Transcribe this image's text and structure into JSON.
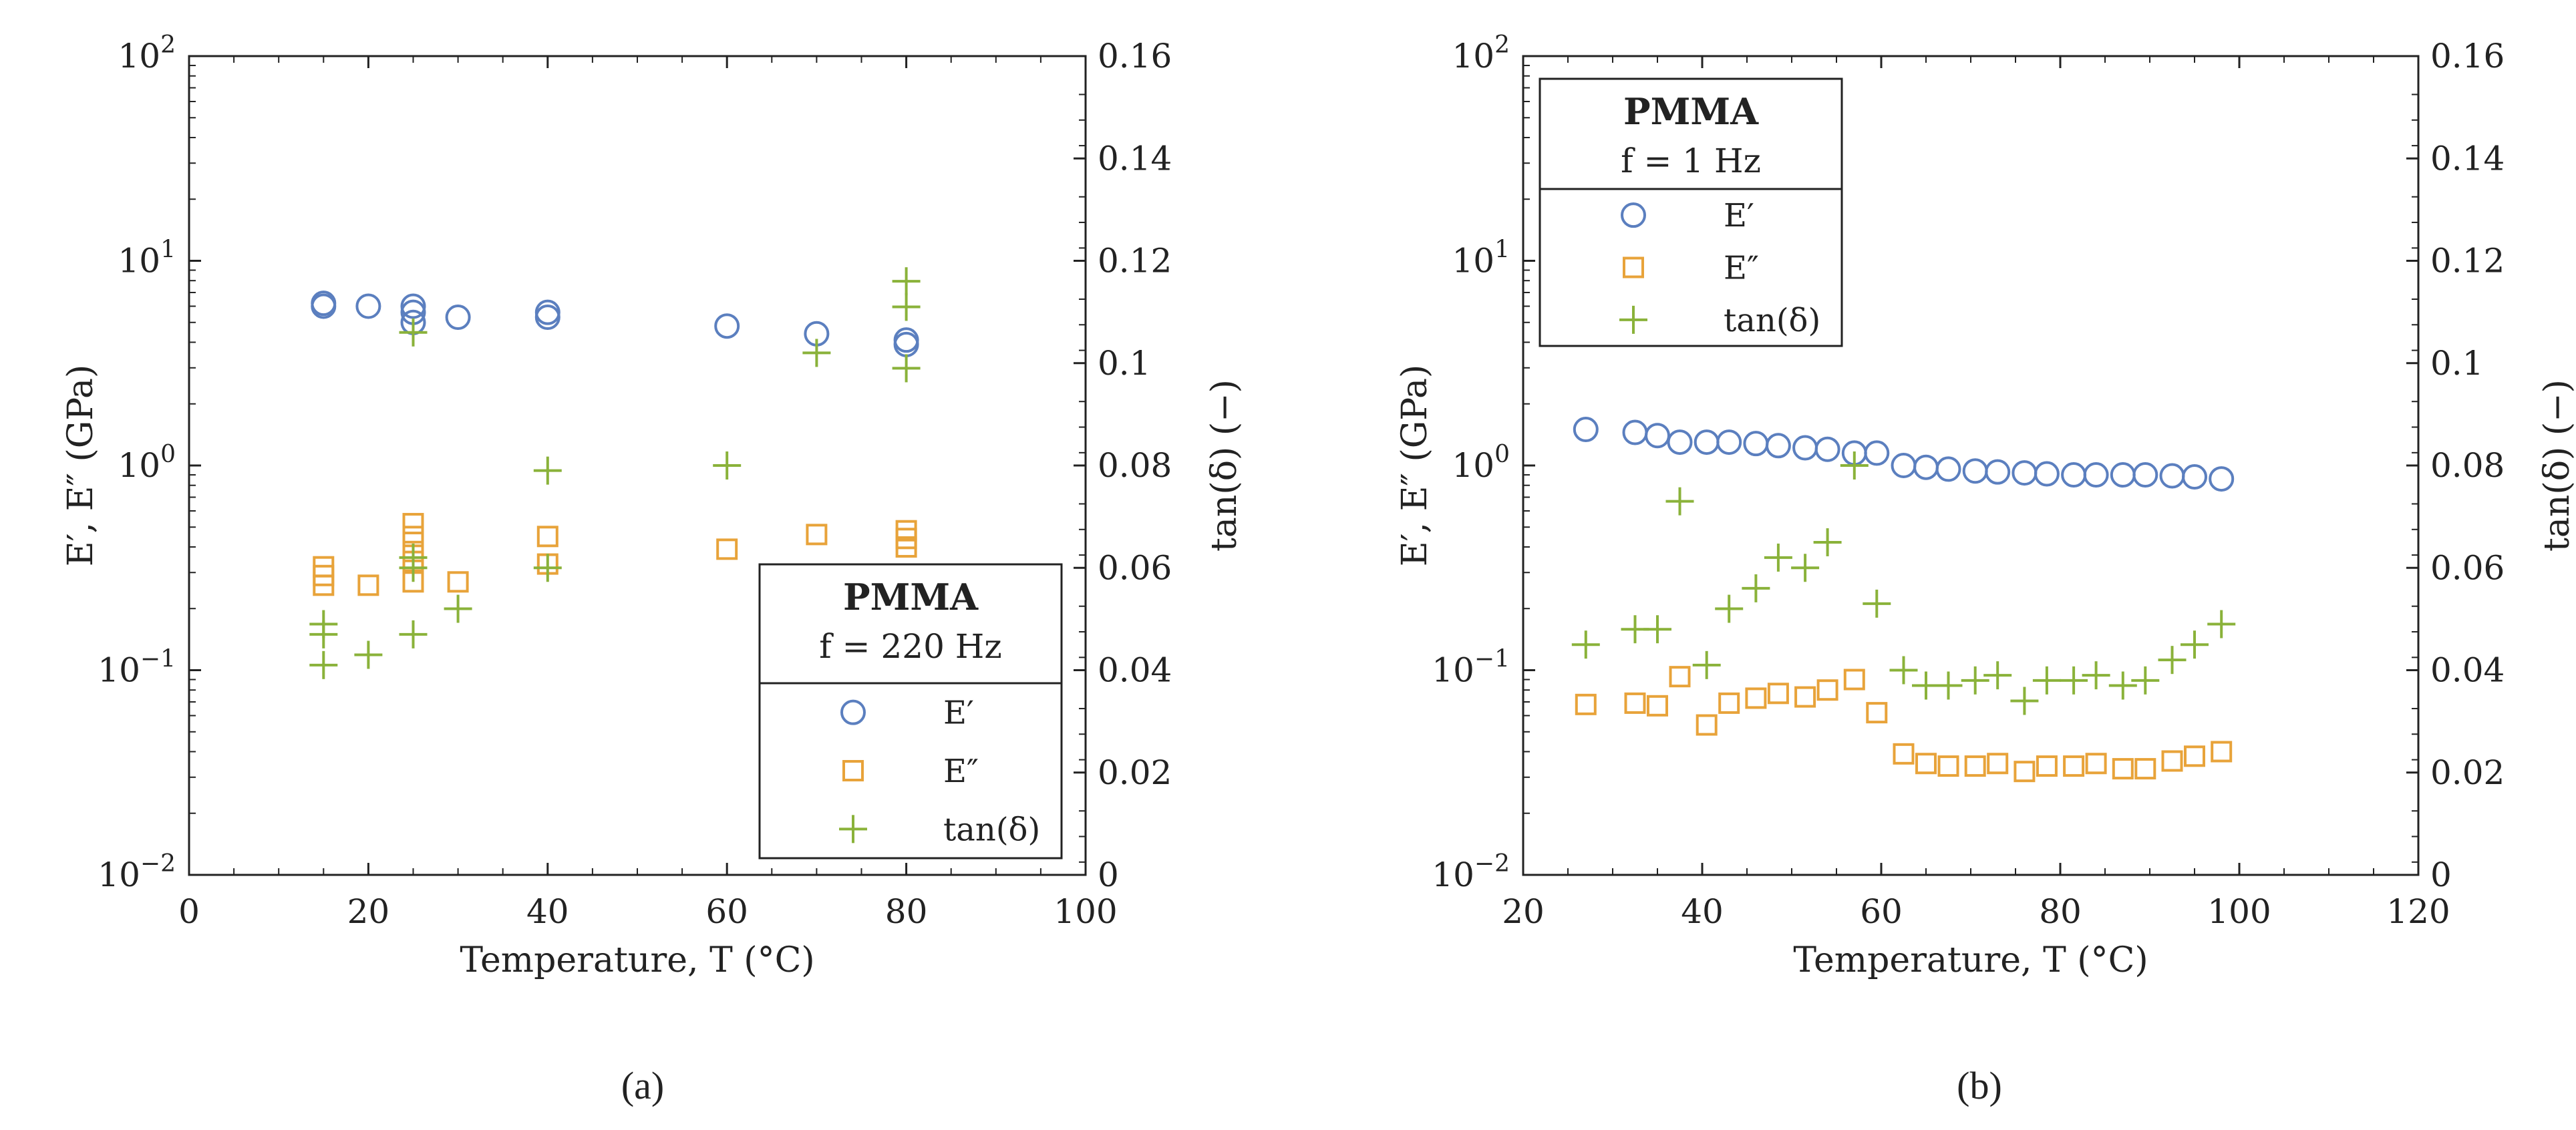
{
  "figure": {
    "panel_a_caption": "(a)",
    "panel_b_caption": "(b)"
  },
  "chart_data": [
    {
      "type": "scatter",
      "panel": "a",
      "caption": "(a)",
      "xlabel": "Temperature, T (°C)",
      "ylabel_left": "E′, E″ (GPa)",
      "ylabel_right": "tan(δ) (−)",
      "xlim": [
        0,
        100
      ],
      "xticks": [
        0,
        20,
        40,
        60,
        80,
        100
      ],
      "ylim_left_log10": [
        -2,
        2
      ],
      "yticks_left": [
        "10−2",
        "10−1",
        "100",
        "101",
        "102"
      ],
      "ylim_right": [
        0,
        0.16
      ],
      "yticks_right": [
        "0",
        "0.02",
        "0.04",
        "0.06",
        "0.08",
        "0.1",
        "0.12",
        "0.14",
        "0.16"
      ],
      "legend": {
        "title": "PMMA",
        "subtitle": "f = 220 Hz",
        "placement": "lower-right",
        "entries": [
          "E′",
          "E″",
          "tan(δ)"
        ]
      },
      "series": [
        {
          "name": "E′",
          "marker": "circle",
          "color": "#5b7fbf",
          "axis": "left",
          "x": [
            15,
            15,
            20,
            25,
            25,
            25,
            30,
            40,
            40,
            60,
            70,
            80,
            80
          ],
          "y": [
            6.2,
            6.0,
            6.0,
            6.0,
            5.6,
            5.0,
            5.3,
            5.6,
            5.3,
            4.8,
            4.4,
            4.1,
            3.9
          ]
        },
        {
          "name": "E″",
          "marker": "square",
          "color": "#e8a33a",
          "axis": "left",
          "x": [
            15,
            15,
            15,
            20,
            25,
            25,
            25,
            25,
            25,
            30,
            40,
            40,
            60,
            70,
            80,
            80,
            80
          ],
          "y": [
            0.32,
            0.29,
            0.26,
            0.26,
            0.52,
            0.45,
            0.38,
            0.34,
            0.27,
            0.27,
            0.45,
            0.33,
            0.39,
            0.46,
            0.48,
            0.44,
            0.4
          ]
        },
        {
          "name": "tan(δ)",
          "marker": "plus",
          "color": "#8ab23a",
          "axis": "right",
          "x": [
            15,
            15,
            15,
            20,
            25,
            25,
            25,
            25,
            30,
            40,
            40,
            60,
            70,
            80,
            80,
            80
          ],
          "y": [
            0.049,
            0.047,
            0.041,
            0.043,
            0.106,
            0.062,
            0.06,
            0.047,
            0.052,
            0.079,
            0.06,
            0.08,
            0.102,
            0.116,
            0.111,
            0.099
          ]
        }
      ]
    },
    {
      "type": "scatter",
      "panel": "b",
      "caption": "(b)",
      "xlabel": "Temperature, T (°C)",
      "ylabel_left": "E′, E″ (GPa)",
      "ylabel_right": "tan(δ) (−)",
      "xlim": [
        20,
        120
      ],
      "xticks": [
        20,
        40,
        60,
        80,
        100,
        120
      ],
      "ylim_left_log10": [
        -2,
        2
      ],
      "yticks_left": [
        "10−2",
        "10−1",
        "100",
        "101",
        "102"
      ],
      "ylim_right": [
        0,
        0.16
      ],
      "yticks_right": [
        "0",
        "0.02",
        "0.04",
        "0.06",
        "0.08",
        "0.1",
        "0.12",
        "0.14",
        "0.16"
      ],
      "legend": {
        "title": "PMMA",
        "subtitle": "f = 1 Hz",
        "placement": "top-left",
        "entries": [
          "E′",
          "E″",
          "tan(δ)"
        ]
      },
      "series": [
        {
          "name": "E′",
          "marker": "circle",
          "color": "#5b7fbf",
          "axis": "left",
          "x": [
            27,
            32.5,
            35,
            37.5,
            40.5,
            43,
            46,
            48.5,
            51.5,
            54,
            57,
            59.5,
            62.5,
            65,
            67.5,
            70.5,
            73,
            76,
            78.5,
            81.5,
            84,
            87,
            89.5,
            92.5,
            95,
            98
          ],
          "y": [
            1.5,
            1.45,
            1.4,
            1.3,
            1.3,
            1.3,
            1.28,
            1.25,
            1.22,
            1.2,
            1.15,
            1.15,
            1.0,
            0.98,
            0.96,
            0.94,
            0.93,
            0.92,
            0.91,
            0.9,
            0.9,
            0.9,
            0.9,
            0.89,
            0.88,
            0.86
          ]
        },
        {
          "name": "E″",
          "marker": "square",
          "color": "#e8a33a",
          "axis": "left",
          "x": [
            27,
            32.5,
            35,
            37.5,
            40.5,
            43,
            46,
            48.5,
            51.5,
            54,
            57,
            59.5,
            62.5,
            65,
            67.5,
            70.5,
            73,
            76,
            78.5,
            81.5,
            84,
            87,
            89.5,
            92.5,
            95,
            98
          ],
          "y": [
            0.068,
            0.069,
            0.067,
            0.093,
            0.054,
            0.069,
            0.073,
            0.077,
            0.074,
            0.08,
            0.09,
            0.062,
            0.039,
            0.035,
            0.034,
            0.034,
            0.035,
            0.032,
            0.034,
            0.034,
            0.035,
            0.033,
            0.033,
            0.036,
            0.038,
            0.04
          ]
        },
        {
          "name": "tan(δ)",
          "marker": "plus",
          "color": "#8ab23a",
          "axis": "right",
          "x": [
            27,
            32.5,
            35,
            37.5,
            40.5,
            43,
            46,
            48.5,
            51.5,
            54,
            57,
            59.5,
            62.5,
            65,
            67.5,
            70.5,
            73,
            76,
            78.5,
            81.5,
            84,
            87,
            89.5,
            92.5,
            95,
            98
          ],
          "y": [
            0.045,
            0.048,
            0.048,
            0.073,
            0.041,
            0.052,
            0.056,
            0.062,
            0.06,
            0.065,
            0.08,
            0.053,
            0.04,
            0.037,
            0.037,
            0.038,
            0.039,
            0.034,
            0.038,
            0.038,
            0.039,
            0.037,
            0.038,
            0.042,
            0.045,
            0.049
          ]
        }
      ]
    }
  ]
}
